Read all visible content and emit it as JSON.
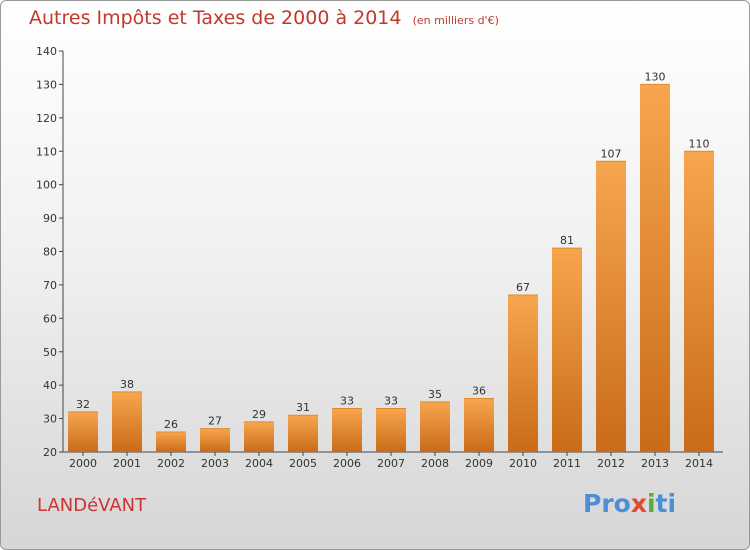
{
  "chart_data": {
    "type": "bar",
    "title": "Autres Impôts et Taxes de 2000 à 2014",
    "subtitle": "(en milliers d'€)",
    "categories": [
      "2000",
      "2001",
      "2002",
      "2003",
      "2004",
      "2005",
      "2006",
      "2007",
      "2008",
      "2009",
      "2010",
      "2011",
      "2012",
      "2013",
      "2014"
    ],
    "values": [
      32,
      38,
      26,
      27,
      29,
      31,
      33,
      33,
      35,
      36,
      67,
      81,
      107,
      130,
      110
    ],
    "ylim": [
      20,
      140
    ],
    "yticks": [
      20,
      30,
      40,
      50,
      60,
      70,
      80,
      90,
      100,
      110,
      120,
      130,
      140
    ],
    "grid": false,
    "bar_color_light": "#f7a64e",
    "bar_color_dark": "#c96b18"
  },
  "footer": {
    "commune": "LANDéVANT",
    "logo": [
      "Pro",
      "x",
      "i",
      "ti"
    ]
  }
}
